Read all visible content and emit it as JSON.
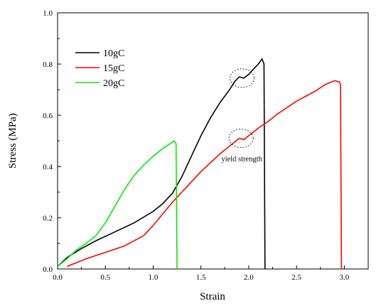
{
  "chart_data": {
    "type": "line",
    "xlabel": "Strain",
    "ylabel": "Stress (MPa)",
    "xlim": [
      0.0,
      3.25
    ],
    "ylim": [
      0.0,
      1.0
    ],
    "xticks": [
      "0.0",
      "0.5",
      "1.0",
      "1.5",
      "2.0",
      "2.5",
      "3.0"
    ],
    "yticks": [
      "0.0",
      "0.2",
      "0.4",
      "0.6",
      "0.8",
      "1.0"
    ],
    "legend_position": "top-left",
    "grid": false,
    "series": [
      {
        "name": "10gC",
        "color": "#000000",
        "points": [
          [
            0.0,
            0.01
          ],
          [
            0.1,
            0.045
          ],
          [
            0.25,
            0.08
          ],
          [
            0.4,
            0.11
          ],
          [
            0.6,
            0.145
          ],
          [
            0.8,
            0.18
          ],
          [
            1.0,
            0.225
          ],
          [
            1.1,
            0.255
          ],
          [
            1.2,
            0.295
          ],
          [
            1.3,
            0.36
          ],
          [
            1.4,
            0.44
          ],
          [
            1.5,
            0.52
          ],
          [
            1.6,
            0.59
          ],
          [
            1.7,
            0.65
          ],
          [
            1.8,
            0.7
          ],
          [
            1.85,
            0.73
          ],
          [
            1.9,
            0.75
          ],
          [
            1.95,
            0.745
          ],
          [
            2.0,
            0.76
          ],
          [
            2.05,
            0.78
          ],
          [
            2.1,
            0.8
          ],
          [
            2.14,
            0.82
          ],
          [
            2.16,
            0.8
          ],
          [
            2.17,
            0.0
          ]
        ]
      },
      {
        "name": "15gC",
        "color": "#ff0000",
        "points": [
          [
            0.1,
            0.01
          ],
          [
            0.3,
            0.04
          ],
          [
            0.5,
            0.065
          ],
          [
            0.7,
            0.09
          ],
          [
            0.9,
            0.13
          ],
          [
            1.0,
            0.17
          ],
          [
            1.1,
            0.215
          ],
          [
            1.2,
            0.26
          ],
          [
            1.3,
            0.3
          ],
          [
            1.4,
            0.34
          ],
          [
            1.5,
            0.38
          ],
          [
            1.6,
            0.415
          ],
          [
            1.7,
            0.45
          ],
          [
            1.8,
            0.48
          ],
          [
            1.9,
            0.51
          ],
          [
            1.95,
            0.505
          ],
          [
            2.0,
            0.52
          ],
          [
            2.1,
            0.55
          ],
          [
            2.2,
            0.575
          ],
          [
            2.3,
            0.605
          ],
          [
            2.4,
            0.63
          ],
          [
            2.5,
            0.655
          ],
          [
            2.6,
            0.675
          ],
          [
            2.7,
            0.695
          ],
          [
            2.8,
            0.72
          ],
          [
            2.9,
            0.735
          ],
          [
            2.95,
            0.73
          ],
          [
            2.96,
            0.72
          ],
          [
            2.97,
            0.0
          ]
        ]
      },
      {
        "name": "20gC",
        "color": "#00ee00",
        "points": [
          [
            0.0,
            0.01
          ],
          [
            0.1,
            0.04
          ],
          [
            0.2,
            0.075
          ],
          [
            0.3,
            0.1
          ],
          [
            0.4,
            0.13
          ],
          [
            0.5,
            0.18
          ],
          [
            0.6,
            0.245
          ],
          [
            0.7,
            0.31
          ],
          [
            0.8,
            0.365
          ],
          [
            0.9,
            0.405
          ],
          [
            1.0,
            0.44
          ],
          [
            1.1,
            0.47
          ],
          [
            1.2,
            0.495
          ],
          [
            1.22,
            0.5
          ],
          [
            1.24,
            0.49
          ],
          [
            1.25,
            0.0
          ]
        ]
      }
    ],
    "annotations": {
      "label": "yield strength",
      "markers": [
        {
          "x": 1.93,
          "y": 0.745
        },
        {
          "x": 1.92,
          "y": 0.51
        }
      ]
    }
  }
}
